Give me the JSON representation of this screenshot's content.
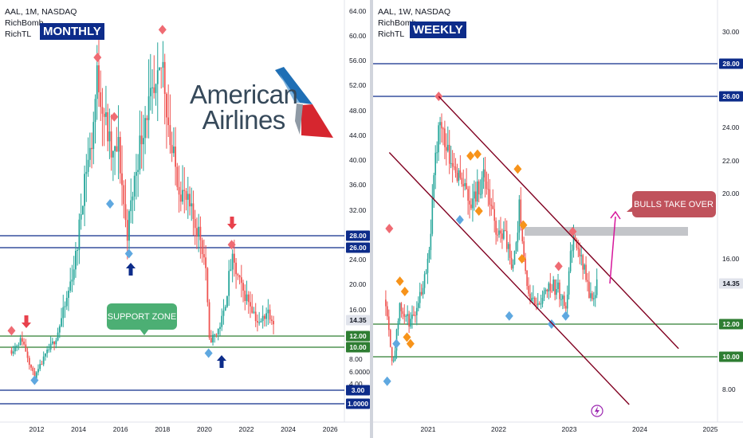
{
  "colors": {
    "up": "#26a69a",
    "down": "#ef5350",
    "navy": "#0d2c8a",
    "green_line": "#2e7d32",
    "channel": "#800020",
    "callout_red": "#c0525c",
    "callout_green": "#4caf74",
    "arrow_magenta": "#d6169b",
    "diamond_red": "#ef6b73",
    "diamond_blue": "#5fa8e0",
    "diamond_orange": "#f7931a"
  },
  "left": {
    "header": {
      "symbol": "AAL, 1M, NASDAQ",
      "ind1": "RichBomb",
      "ind2": "RichTL"
    },
    "badge": "MONTHLY",
    "logo": {
      "line1": "American",
      "line2": "Airlines"
    },
    "callout": "SUPPORT ZONE",
    "price_labels": [
      "64.00",
      "60.00",
      "56.00",
      "52.00",
      "48.00",
      "44.00",
      "40.00",
      "36.00",
      "32.00",
      "24.00",
      "20.00",
      "16.00",
      "8.00",
      "6.0000",
      "4.00"
    ],
    "level_tags": [
      {
        "text": "28.00",
        "y": 296,
        "color": "#0d2c8a"
      },
      {
        "text": "26.00",
        "y": 311,
        "color": "#0d2c8a"
      },
      {
        "text": "14.35",
        "y": 402,
        "color": "#e0e3eb"
      },
      {
        "text": "12.00",
        "y": 422,
        "color": "#2e7d32"
      },
      {
        "text": "10.00",
        "y": 436,
        "color": "#2e7d32"
      },
      {
        "text": "3.00",
        "y": 490,
        "color": "#0d2c8a"
      },
      {
        "text": "1.0000",
        "y": 507,
        "color": "#0d2c8a"
      }
    ],
    "years": [
      "2012",
      "2014",
      "2016",
      "2018",
      "2020",
      "2022",
      "2024",
      "2026"
    ]
  },
  "right": {
    "header": {
      "symbol": "AAL, 1W, NASDAQ",
      "ind1": "RichBomb",
      "ind2": "RichTL"
    },
    "badge": "WEEKLY",
    "callout": "BULLS TAKE OVER",
    "price_labels": [
      "30.00",
      "24.00",
      "22.00",
      "20.00",
      "16.00",
      "8.00"
    ],
    "level_tags": [
      {
        "text": "28.00",
        "y": 80,
        "color": "#0d2c8a"
      },
      {
        "text": "26.00",
        "y": 121,
        "color": "#0d2c8a"
      },
      {
        "text": "14.35",
        "y": 356,
        "color": "#e0e3eb"
      },
      {
        "text": "12.00",
        "y": 407,
        "color": "#2e7d32"
      },
      {
        "text": "10.00",
        "y": 448,
        "color": "#2e7d32"
      }
    ],
    "years": [
      "2021",
      "2022",
      "2023",
      "2024",
      "2025"
    ]
  },
  "chart_data": [
    {
      "type": "candlestick",
      "title": "AAL, 1M, NASDAQ",
      "timeframe": "MONTHLY",
      "x_range": [
        "2011",
        "2026"
      ],
      "ylim": [
        1,
        64
      ],
      "horizontal_levels": [
        28.0,
        26.0,
        12.0,
        10.0,
        3.0,
        1.0
      ],
      "last_price": 14.35,
      "annotations": [
        "SUPPORT ZONE"
      ],
      "close_path": [
        {
          "x": 2010.8,
          "y": 9.5
        },
        {
          "x": 2011.3,
          "y": 11.5
        },
        {
          "x": 2011.7,
          "y": 7.0
        },
        {
          "x": 2011.9,
          "y": 5.0
        },
        {
          "x": 2012.4,
          "y": 8.5
        },
        {
          "x": 2012.9,
          "y": 11.5
        },
        {
          "x": 2013.4,
          "y": 17.0
        },
        {
          "x": 2013.9,
          "y": 25.0
        },
        {
          "x": 2014.3,
          "y": 38.0
        },
        {
          "x": 2014.6,
          "y": 42.0
        },
        {
          "x": 2014.9,
          "y": 54.0
        },
        {
          "x": 2015.2,
          "y": 48.0
        },
        {
          "x": 2015.6,
          "y": 40.0
        },
        {
          "x": 2015.9,
          "y": 42.0
        },
        {
          "x": 2016.3,
          "y": 28.0
        },
        {
          "x": 2016.8,
          "y": 40.0
        },
        {
          "x": 2017.2,
          "y": 48.0
        },
        {
          "x": 2017.7,
          "y": 50.0
        },
        {
          "x": 2018.0,
          "y": 56.0
        },
        {
          "x": 2018.4,
          "y": 42.0
        },
        {
          "x": 2018.8,
          "y": 36.0
        },
        {
          "x": 2019.3,
          "y": 32.0
        },
        {
          "x": 2019.8,
          "y": 28.0
        },
        {
          "x": 2020.1,
          "y": 22.0
        },
        {
          "x": 2020.2,
          "y": 11.0
        },
        {
          "x": 2020.6,
          "y": 12.5
        },
        {
          "x": 2020.9,
          "y": 15.0
        },
        {
          "x": 2021.3,
          "y": 24.0
        },
        {
          "x": 2021.8,
          "y": 19.0
        },
        {
          "x": 2022.2,
          "y": 17.0
        },
        {
          "x": 2022.6,
          "y": 13.5
        },
        {
          "x": 2023.0,
          "y": 16.0
        },
        {
          "x": 2023.3,
          "y": 14.35
        }
      ],
      "markers": [
        {
          "x": 2010.8,
          "y": 12.8,
          "type": "diamond-red"
        },
        {
          "x": 2011.9,
          "y": 4.6,
          "type": "diamond-blue"
        },
        {
          "x": 2014.9,
          "y": 56.5,
          "type": "diamond-red"
        },
        {
          "x": 2015.7,
          "y": 47.0,
          "type": "diamond-red"
        },
        {
          "x": 2015.5,
          "y": 33.0,
          "type": "diamond-blue"
        },
        {
          "x": 2018.0,
          "y": 61.0,
          "type": "diamond-red"
        },
        {
          "x": 2016.4,
          "y": 25.0,
          "type": "diamond-blue"
        },
        {
          "x": 2021.3,
          "y": 26.5,
          "type": "diamond-red"
        },
        {
          "x": 2020.2,
          "y": 9.0,
          "type": "diamond-blue"
        }
      ]
    },
    {
      "type": "candlestick",
      "title": "AAL, 1W, NASDAQ",
      "timeframe": "WEEKLY",
      "x_range": [
        "2020.4",
        "2025"
      ],
      "ylim": [
        7,
        32
      ],
      "horizontal_levels": [
        28.0,
        26.0,
        12.0,
        10.0
      ],
      "last_price": 14.35,
      "resistance_zone": [
        17.5,
        18.0
      ],
      "annotations": [
        "BULLS TAKE OVER"
      ],
      "channel": {
        "upper": [
          {
            "x": 2021.15,
            "y": 26.0
          },
          {
            "x": 2024.55,
            "y": 10.5
          }
        ],
        "lower": [
          {
            "x": 2020.45,
            "y": 22.5
          },
          {
            "x": 2023.85,
            "y": 7.0
          }
        ]
      },
      "close_path": [
        {
          "x": 2020.4,
          "y": 13.5
        },
        {
          "x": 2020.5,
          "y": 9.5
        },
        {
          "x": 2020.6,
          "y": 13.0
        },
        {
          "x": 2020.75,
          "y": 12.0
        },
        {
          "x": 2020.9,
          "y": 14.0
        },
        {
          "x": 2021.0,
          "y": 16.0
        },
        {
          "x": 2021.15,
          "y": 24.5
        },
        {
          "x": 2021.3,
          "y": 22.5
        },
        {
          "x": 2021.45,
          "y": 21.0
        },
        {
          "x": 2021.6,
          "y": 19.5
        },
        {
          "x": 2021.8,
          "y": 21.0
        },
        {
          "x": 2021.95,
          "y": 18.0
        },
        {
          "x": 2022.1,
          "y": 17.5
        },
        {
          "x": 2022.2,
          "y": 15.0
        },
        {
          "x": 2022.3,
          "y": 19.5
        },
        {
          "x": 2022.4,
          "y": 14.0
        },
        {
          "x": 2022.55,
          "y": 13.0
        },
        {
          "x": 2022.7,
          "y": 14.5
        },
        {
          "x": 2022.85,
          "y": 14.0
        },
        {
          "x": 2022.95,
          "y": 13.0
        },
        {
          "x": 2023.05,
          "y": 17.5
        },
        {
          "x": 2023.2,
          "y": 15.5
        },
        {
          "x": 2023.3,
          "y": 13.5
        },
        {
          "x": 2023.4,
          "y": 14.35
        }
      ],
      "markers": [
        {
          "x": 2020.45,
          "y": 18.0,
          "type": "diamond-red"
        },
        {
          "x": 2020.42,
          "y": 8.5,
          "type": "diamond-blue"
        },
        {
          "x": 2020.6,
          "y": 14.5,
          "type": "diamond-orange"
        },
        {
          "x": 2020.67,
          "y": 14.0,
          "type": "diamond-orange"
        },
        {
          "x": 2020.7,
          "y": 11.2,
          "type": "diamond-orange"
        },
        {
          "x": 2020.75,
          "y": 10.8,
          "type": "diamond-orange"
        },
        {
          "x": 2020.55,
          "y": 10.8,
          "type": "diamond-blue"
        },
        {
          "x": 2021.15,
          "y": 26.0,
          "type": "diamond-red"
        },
        {
          "x": 2021.45,
          "y": 18.5,
          "type": "diamond-blue"
        },
        {
          "x": 2021.6,
          "y": 22.3,
          "type": "diamond-orange"
        },
        {
          "x": 2021.7,
          "y": 22.4,
          "type": "diamond-orange"
        },
        {
          "x": 2021.72,
          "y": 19.0,
          "type": "diamond-orange"
        },
        {
          "x": 2022.27,
          "y": 21.5,
          "type": "diamond-orange"
        },
        {
          "x": 2022.35,
          "y": 18.2,
          "type": "diamond-orange"
        },
        {
          "x": 2022.33,
          "y": 16.0,
          "type": "diamond-orange"
        },
        {
          "x": 2022.15,
          "y": 12.5,
          "type": "diamond-blue"
        },
        {
          "x": 2022.75,
          "y": 12.0,
          "type": "diamond-blue"
        },
        {
          "x": 2022.95,
          "y": 12.5,
          "type": "diamond-blue"
        },
        {
          "x": 2022.85,
          "y": 15.5,
          "type": "diamond-red"
        },
        {
          "x": 2023.05,
          "y": 17.8,
          "type": "diamond-red"
        }
      ]
    }
  ]
}
